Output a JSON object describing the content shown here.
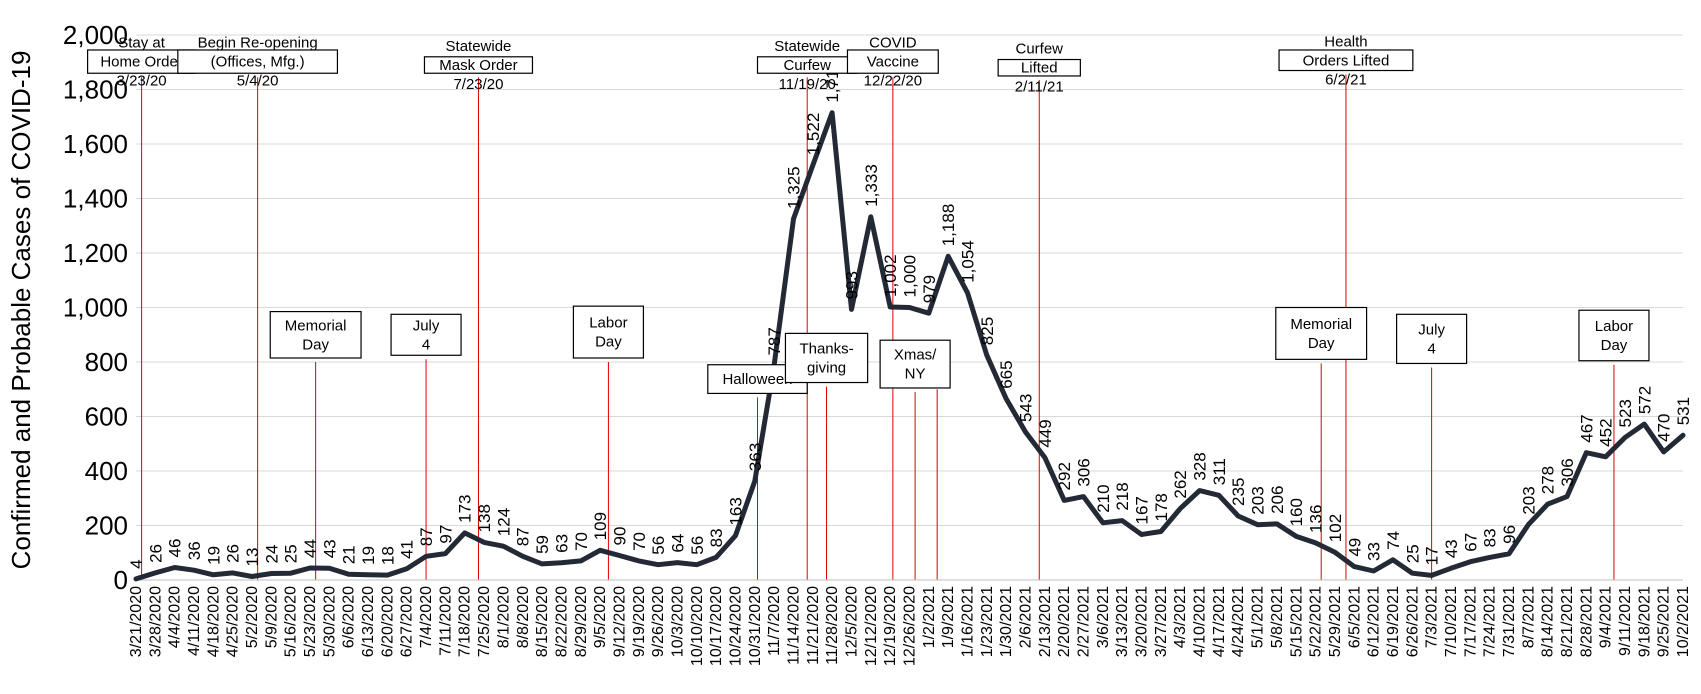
{
  "chart_data": {
    "type": "line",
    "title": "",
    "xlabel": "",
    "ylabel": "Confirmed and Probable Cases of COVID-19",
    "ylim": [
      0,
      2000
    ],
    "yticks": [
      "0",
      "200",
      "400",
      "600",
      "800",
      "1,000",
      "1,200",
      "1,400",
      "1,600",
      "1,800",
      "2,000"
    ],
    "grid": true,
    "x": [
      "3/21/2020",
      "3/28/2020",
      "4/4/2020",
      "4/11/2020",
      "4/18/2020",
      "4/25/2020",
      "5/2/2020",
      "5/9/2020",
      "5/16/2020",
      "5/23/2020",
      "5/30/2020",
      "6/6/2020",
      "6/13/2020",
      "6/20/2020",
      "6/27/2020",
      "7/4/2020",
      "7/11/2020",
      "7/18/2020",
      "7/25/2020",
      "8/1/2020",
      "8/8/2020",
      "8/15/2020",
      "8/22/2020",
      "8/29/2020",
      "9/5/2020",
      "9/12/2020",
      "9/19/2020",
      "9/26/2020",
      "10/3/2020",
      "10/10/2020",
      "10/17/2020",
      "10/24/2020",
      "10/31/2020",
      "11/7/2020",
      "11/14/2020",
      "11/21/2020",
      "11/28/2020",
      "12/5/2020",
      "12/12/2020",
      "12/19/2020",
      "12/26/2020",
      "1/2/2021",
      "1/9/2021",
      "1/16/2021",
      "1/23/2021",
      "1/30/2021",
      "2/6/2021",
      "2/13/2021",
      "2/20/2021",
      "2/27/2021",
      "3/6/2021",
      "3/13/2021",
      "3/20/2021",
      "3/27/2021",
      "4/3/2021",
      "4/10/2021",
      "4/17/2021",
      "4/24/2021",
      "5/1/2021",
      "5/8/2021",
      "5/15/2021",
      "5/22/2021",
      "5/29/2021",
      "6/5/2021",
      "6/12/2021",
      "6/19/2021",
      "6/26/2021",
      "7/3/2021",
      "7/10/2021",
      "7/17/2021",
      "7/24/2021",
      "7/31/2021",
      "8/7/2021",
      "8/14/2021",
      "8/21/2021",
      "8/28/2021",
      "9/4/2021",
      "9/11/2021",
      "9/18/2021",
      "9/25/2021",
      "10/2/2021"
    ],
    "values": [
      4,
      26,
      46,
      36,
      19,
      26,
      13,
      24,
      25,
      44,
      43,
      21,
      19,
      18,
      41,
      87,
      97,
      173,
      138,
      124,
      87,
      59,
      63,
      70,
      109,
      90,
      70,
      56,
      64,
      56,
      83,
      163,
      363,
      787,
      1325,
      1522,
      1715,
      993,
      1333,
      1002,
      1000,
      979,
      1188,
      1054,
      825,
      665,
      543,
      449,
      292,
      306,
      210,
      218,
      167,
      178,
      262,
      328,
      311,
      235,
      203,
      206,
      160,
      136,
      102,
      49,
      33,
      74,
      25,
      17,
      43,
      67,
      83,
      96,
      203,
      278,
      306,
      467,
      452,
      523,
      572,
      470,
      531
    ],
    "data_labels": [
      "4",
      "26",
      "46",
      "36",
      "19",
      "26",
      "13",
      "24",
      "25",
      "44",
      "43",
      "21",
      "19",
      "18",
      "41",
      "87",
      "97",
      "173",
      "138",
      "124",
      "87",
      "59",
      "63",
      "70",
      "109",
      "90",
      "70",
      "56",
      "64",
      "56",
      "83",
      "163",
      "363",
      "787",
      "1,325",
      "1,522",
      "1,715",
      "993",
      "1,333",
      "1,002",
      "1,000",
      "979",
      "1,188",
      "1,054",
      "825",
      "665",
      "543",
      "449",
      "292",
      "306",
      "210",
      "218",
      "167",
      "178",
      "262",
      "328",
      "311",
      "235",
      "203",
      "206",
      "160",
      "136",
      "102",
      "49",
      "33",
      "74",
      "25",
      "17",
      "43",
      "67",
      "83",
      "96",
      "203",
      "278",
      "306",
      "467",
      "452",
      "523",
      "572",
      "470",
      "531"
    ],
    "series_color": "#232a36",
    "annotation_color": "#e00000",
    "annotations": [
      {
        "date": "3/23/2020",
        "pos": 0.29,
        "lines": [
          "Stay at",
          "Home Order",
          "3/23/20"
        ],
        "box_top": 1945,
        "box_bottom": 1845
      },
      {
        "date": "5/4/2020",
        "pos": 6.29,
        "lines": [
          "Begin Re-opening",
          "(Offices, Mfg.)",
          "5/4/20"
        ],
        "box_top": 1945,
        "box_bottom": 1845
      },
      {
        "date": "7/23/2020",
        "pos": 17.71,
        "lines": [
          "Statewide",
          "Mask Order",
          "7/23/20"
        ],
        "box_top": 1920,
        "box_bottom": 1845
      },
      {
        "date": "11/19/2020",
        "pos": 34.71,
        "lines": [
          "Statewide",
          "Curfew",
          "11/19/20"
        ],
        "box_top": 1920,
        "box_bottom": 1845
      },
      {
        "date": "12/22/2020",
        "pos": 39.14,
        "lines": [
          "COVID",
          "Vaccine",
          "12/22/20"
        ],
        "box_top": 1945,
        "box_bottom": 1845
      },
      {
        "date": "2/11/2021",
        "pos": 46.71,
        "lines": [
          "Curfew",
          "Lifted",
          "2/11/21"
        ],
        "box_top": 1910,
        "box_bottom": 1835
      },
      {
        "date": "6/2/2021",
        "pos": 62.57,
        "lines": [
          "Health",
          "Orders Lifted",
          "6/2/21"
        ],
        "box_top": 1945,
        "box_bottom": 1855
      },
      {
        "date": "Memorial Day 2020",
        "pos": 9.29,
        "lines": [
          "Memorial",
          "Day"
        ],
        "box_top": 985,
        "box_bottom": 800
      },
      {
        "date": "July 4 2020",
        "pos": 15.0,
        "lines": [
          "July",
          "4"
        ],
        "box_top": 975,
        "box_bottom": 810
      },
      {
        "date": "Labor Day 2020",
        "pos": 24.43,
        "lines": [
          "Labor",
          "Day"
        ],
        "box_top": 1005,
        "box_bottom": 800
      },
      {
        "date": "Halloween 2020",
        "pos": 32.14,
        "lines": [
          "Halloween"
        ],
        "box_top": 790,
        "box_bottom": 670
      },
      {
        "date": "Thanksgiving 2020",
        "pos": 35.71,
        "lines": [
          "Thanks-",
          "giving"
        ],
        "box_top": 905,
        "box_bottom": 710
      },
      {
        "date": "Christmas 2020",
        "pos": 40.29,
        "lines": [
          "Xmas/",
          "NY"
        ],
        "box_top": 880,
        "box_bottom": 690
      },
      {
        "date": "New Year 2021",
        "pos": 41.43,
        "lines": [],
        "box_top": 0,
        "box_bottom": 700
      },
      {
        "date": "Memorial Day 2021",
        "pos": 61.29,
        "lines": [
          "Memorial",
          "Day"
        ],
        "box_top": 1000,
        "box_bottom": 795
      },
      {
        "date": "July 4 2021",
        "pos": 67.0,
        "lines": [
          "July",
          "4"
        ],
        "box_top": 975,
        "box_bottom": 780
      },
      {
        "date": "Labor Day 2021",
        "pos": 76.43,
        "lines": [
          "Labor",
          "Day"
        ],
        "box_top": 990,
        "box_bottom": 790
      }
    ]
  }
}
